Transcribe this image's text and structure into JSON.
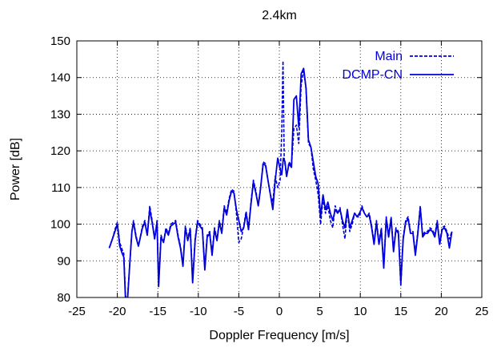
{
  "chart_data": {
    "type": "line",
    "title": "2.4km",
    "xlabel": "Doppler Frequency [m/s]",
    "ylabel": "Power [dB]",
    "xlim": [
      -25,
      25
    ],
    "ylim": [
      80,
      150
    ],
    "xticks": [
      -25,
      -20,
      -15,
      -10,
      -5,
      0,
      5,
      10,
      15,
      20,
      25
    ],
    "yticks": [
      80,
      90,
      100,
      110,
      120,
      130,
      140,
      150
    ],
    "grid": true,
    "legend_position": "top-right",
    "series_color": "#0000dd",
    "series": [
      {
        "name": "Main",
        "style": "dashed",
        "points": [
          [
            -21,
            93.5
          ],
          [
            -20.6,
            96
          ],
          [
            -20.3,
            98.5
          ],
          [
            -20,
            100.5
          ],
          [
            -19.7,
            95
          ],
          [
            -19.4,
            93
          ],
          [
            -19.2,
            92
          ],
          [
            -19,
            81
          ],
          [
            -18.8,
            78
          ],
          [
            -18.5,
            88
          ],
          [
            -18.2,
            98
          ],
          [
            -18,
            101
          ],
          [
            -17.7,
            97
          ],
          [
            -17.4,
            94
          ],
          [
            -17.2,
            96
          ],
          [
            -16.9,
            99.5
          ],
          [
            -16.6,
            101
          ],
          [
            -16.3,
            97
          ],
          [
            -16,
            105
          ],
          [
            -15.7,
            101
          ],
          [
            -15.4,
            96
          ],
          [
            -15.1,
            101
          ],
          [
            -14.9,
            83.5
          ],
          [
            -14.6,
            97
          ],
          [
            -14.3,
            95
          ],
          [
            -14,
            99
          ],
          [
            -13.7,
            97.5
          ],
          [
            -13.4,
            100
          ],
          [
            -13.1,
            100.5
          ],
          [
            -12.8,
            101
          ],
          [
            -12.5,
            97
          ],
          [
            -12.2,
            94
          ],
          [
            -11.9,
            89
          ],
          [
            -11.6,
            99.5
          ],
          [
            -11.3,
            96
          ],
          [
            -11,
            99
          ],
          [
            -10.7,
            84.5
          ],
          [
            -10.4,
            96
          ],
          [
            -10.1,
            101
          ],
          [
            -9.8,
            100
          ],
          [
            -9.5,
            99
          ],
          [
            -9.2,
            88
          ],
          [
            -8.9,
            97
          ],
          [
            -8.6,
            98
          ],
          [
            -8.3,
            92
          ],
          [
            -8,
            99
          ],
          [
            -7.7,
            96
          ],
          [
            -7.4,
            101
          ],
          [
            -7.1,
            98
          ],
          [
            -6.8,
            105
          ],
          [
            -6.5,
            103
          ],
          [
            -6.2,
            107
          ],
          [
            -5.9,
            109.5
          ],
          [
            -5.6,
            109
          ],
          [
            -5.3,
            103
          ],
          [
            -5,
            95
          ],
          [
            -4.7,
            96
          ],
          [
            -4.4,
            99.5
          ],
          [
            -4.1,
            103.5
          ],
          [
            -3.8,
            99
          ],
          [
            -3.5,
            106
          ],
          [
            -3.2,
            112
          ],
          [
            -2.9,
            109
          ],
          [
            -2.6,
            105
          ],
          [
            -2.3,
            110
          ],
          [
            -2,
            117
          ],
          [
            -1.7,
            116.5
          ],
          [
            -1.4,
            112
          ],
          [
            -1.1,
            108
          ],
          [
            -0.8,
            106
          ],
          [
            -0.5,
            113
          ],
          [
            -0.2,
            110
          ],
          [
            0.1,
            112
          ],
          [
            0.3,
            125
          ],
          [
            0.45,
            144.5
          ],
          [
            0.6,
            118
          ],
          [
            0.9,
            113
          ],
          [
            1.2,
            117
          ],
          [
            1.5,
            116
          ],
          [
            1.8,
            126
          ],
          [
            2.1,
            127
          ],
          [
            2.4,
            122
          ],
          [
            2.7,
            138
          ],
          [
            3,
            142
          ],
          [
            3.3,
            137
          ],
          [
            3.6,
            122
          ],
          [
            3.9,
            121
          ],
          [
            4.2,
            115
          ],
          [
            4.5,
            112
          ],
          [
            4.8,
            108
          ],
          [
            5.1,
            100
          ],
          [
            5.4,
            107
          ],
          [
            5.7,
            103
          ],
          [
            6,
            105
          ],
          [
            6.3,
            101
          ],
          [
            6.6,
            99
          ],
          [
            6.9,
            105
          ],
          [
            7.2,
            103
          ],
          [
            7.5,
            104.5
          ],
          [
            7.8,
            100
          ],
          [
            8.1,
            96
          ],
          [
            8.4,
            104
          ],
          [
            8.7,
            98
          ],
          [
            9,
            100
          ],
          [
            9.3,
            103
          ],
          [
            9.6,
            102
          ],
          [
            9.9,
            102
          ],
          [
            10.2,
            105
          ],
          [
            10.5,
            103
          ],
          [
            10.8,
            102
          ],
          [
            11.1,
            103
          ],
          [
            11.4,
            99.5
          ],
          [
            11.7,
            95
          ],
          [
            12,
            101
          ],
          [
            12.3,
            95
          ],
          [
            12.6,
            99
          ],
          [
            12.9,
            88.5
          ],
          [
            13.2,
            102
          ],
          [
            13.5,
            97
          ],
          [
            13.8,
            102
          ],
          [
            14.1,
            93
          ],
          [
            14.4,
            99
          ],
          [
            14.7,
            98
          ],
          [
            15,
            83
          ],
          [
            15.3,
            96.5
          ],
          [
            15.6,
            101
          ],
          [
            15.9,
            102
          ],
          [
            16.2,
            98
          ],
          [
            16.5,
            98
          ],
          [
            16.8,
            92
          ],
          [
            17.1,
            98
          ],
          [
            17.4,
            105
          ],
          [
            17.7,
            97
          ],
          [
            18,
            98
          ],
          [
            18.3,
            98
          ],
          [
            18.6,
            99
          ],
          [
            18.9,
            98.5
          ],
          [
            19.2,
            97
          ],
          [
            19.5,
            101
          ],
          [
            19.8,
            95
          ],
          [
            20.1,
            99
          ],
          [
            20.4,
            99.5
          ],
          [
            20.7,
            98
          ],
          [
            21,
            96
          ],
          [
            21.3,
            98
          ]
        ]
      },
      {
        "name": "DCMP-CN",
        "style": "solid",
        "points": [
          [
            -21,
            93.5
          ],
          [
            -20.6,
            96
          ],
          [
            -20.3,
            98
          ],
          [
            -20,
            100
          ],
          [
            -19.7,
            94
          ],
          [
            -19.4,
            92
          ],
          [
            -19.2,
            91
          ],
          [
            -19,
            80
          ],
          [
            -18.8,
            77
          ],
          [
            -18.5,
            88
          ],
          [
            -18.2,
            98
          ],
          [
            -18,
            100.5
          ],
          [
            -17.7,
            96.5
          ],
          [
            -17.4,
            94
          ],
          [
            -17.2,
            96
          ],
          [
            -16.9,
            99
          ],
          [
            -16.6,
            100.5
          ],
          [
            -16.3,
            97
          ],
          [
            -16,
            104
          ],
          [
            -15.7,
            100.5
          ],
          [
            -15.4,
            96
          ],
          [
            -15.1,
            100.5
          ],
          [
            -14.9,
            83
          ],
          [
            -14.6,
            96.5
          ],
          [
            -14.3,
            95
          ],
          [
            -14,
            98.5
          ],
          [
            -13.7,
            97
          ],
          [
            -13.4,
            99.5
          ],
          [
            -13.1,
            100
          ],
          [
            -12.8,
            100.5
          ],
          [
            -12.5,
            96.5
          ],
          [
            -12.2,
            93.5
          ],
          [
            -11.9,
            88.5
          ],
          [
            -11.6,
            99
          ],
          [
            -11.3,
            95.5
          ],
          [
            -11,
            98.5
          ],
          [
            -10.7,
            84
          ],
          [
            -10.4,
            95.5
          ],
          [
            -10.1,
            100.5
          ],
          [
            -9.8,
            99.5
          ],
          [
            -9.5,
            98.5
          ],
          [
            -9.2,
            87.5
          ],
          [
            -8.9,
            96.5
          ],
          [
            -8.6,
            97.5
          ],
          [
            -8.3,
            91.5
          ],
          [
            -8,
            98.5
          ],
          [
            -7.7,
            95.5
          ],
          [
            -7.4,
            100.5
          ],
          [
            -7.1,
            97.5
          ],
          [
            -6.8,
            104.5
          ],
          [
            -6.5,
            102.5
          ],
          [
            -6.2,
            106.5
          ],
          [
            -5.9,
            109
          ],
          [
            -5.6,
            108.5
          ],
          [
            -5.3,
            104
          ],
          [
            -5,
            101
          ],
          [
            -4.7,
            98
          ],
          [
            -4.4,
            99
          ],
          [
            -4.1,
            103
          ],
          [
            -3.8,
            98.5
          ],
          [
            -3.5,
            105.5
          ],
          [
            -3.2,
            111.5
          ],
          [
            -2.9,
            108.5
          ],
          [
            -2.6,
            105
          ],
          [
            -2.3,
            110
          ],
          [
            -2,
            116.5
          ],
          [
            -1.7,
            116
          ],
          [
            -1.4,
            112
          ],
          [
            -1.1,
            108
          ],
          [
            -0.8,
            104
          ],
          [
            -0.5,
            112
          ],
          [
            -0.2,
            118
          ],
          [
            0.1,
            115
          ],
          [
            0.3,
            113.5
          ],
          [
            0.5,
            118
          ],
          [
            0.7,
            117
          ],
          [
            0.9,
            113
          ],
          [
            1.2,
            116.5
          ],
          [
            1.5,
            115.5
          ],
          [
            1.8,
            134
          ],
          [
            2.1,
            135
          ],
          [
            2.4,
            126.5
          ],
          [
            2.7,
            141
          ],
          [
            3,
            142.5
          ],
          [
            3.3,
            137
          ],
          [
            3.6,
            123
          ],
          [
            3.9,
            121
          ],
          [
            4.2,
            117
          ],
          [
            4.5,
            113
          ],
          [
            4.8,
            111
          ],
          [
            5.1,
            102
          ],
          [
            5.4,
            108
          ],
          [
            5.7,
            104
          ],
          [
            6,
            106
          ],
          [
            6.3,
            103
          ],
          [
            6.6,
            101
          ],
          [
            6.9,
            104
          ],
          [
            7.2,
            103
          ],
          [
            7.5,
            104
          ],
          [
            7.8,
            101
          ],
          [
            8.1,
            99
          ],
          [
            8.4,
            104
          ],
          [
            8.7,
            99
          ],
          [
            9,
            101
          ],
          [
            9.3,
            103
          ],
          [
            9.6,
            102
          ],
          [
            9.9,
            103
          ],
          [
            10.2,
            104.5
          ],
          [
            10.5,
            103
          ],
          [
            10.8,
            102
          ],
          [
            11.1,
            102.5
          ],
          [
            11.4,
            99
          ],
          [
            11.7,
            94.5
          ],
          [
            12,
            100.5
          ],
          [
            12.3,
            94.5
          ],
          [
            12.6,
            98.5
          ],
          [
            12.9,
            88
          ],
          [
            13.2,
            101.5
          ],
          [
            13.5,
            96.5
          ],
          [
            13.8,
            101.5
          ],
          [
            14.1,
            92.5
          ],
          [
            14.4,
            98.5
          ],
          [
            14.7,
            97.5
          ],
          [
            15,
            84
          ],
          [
            15.3,
            96
          ],
          [
            15.6,
            100.5
          ],
          [
            15.9,
            101.5
          ],
          [
            16.2,
            97.5
          ],
          [
            16.5,
            97.5
          ],
          [
            16.8,
            91.5
          ],
          [
            17.1,
            97.5
          ],
          [
            17.4,
            104.5
          ],
          [
            17.7,
            96.5
          ],
          [
            18,
            97.5
          ],
          [
            18.3,
            97.5
          ],
          [
            18.6,
            98.5
          ],
          [
            18.9,
            98
          ],
          [
            19.2,
            96.5
          ],
          [
            19.5,
            100.5
          ],
          [
            19.8,
            94.5
          ],
          [
            20.1,
            98.5
          ],
          [
            20.4,
            99
          ],
          [
            20.7,
            97.5
          ],
          [
            21,
            93.5
          ],
          [
            21.3,
            98
          ]
        ]
      }
    ]
  }
}
